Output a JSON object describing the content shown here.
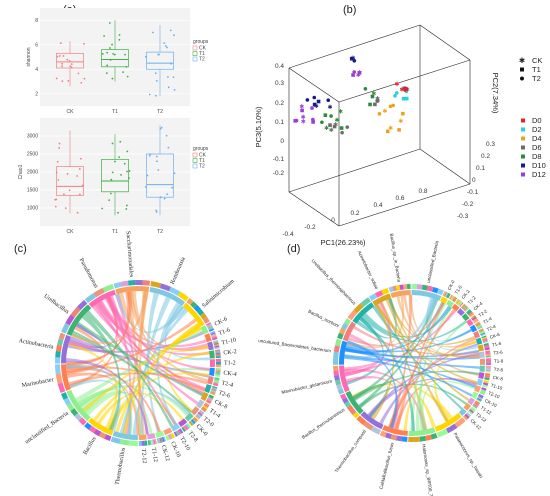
{
  "chart_data": [
    {
      "panel_label": "(a)",
      "type": "box",
      "subplots": [
        {
          "ylabel": "shannon",
          "categories": [
            "CK",
            "T1",
            "T2"
          ],
          "colors": [
            "#f08080",
            "#3cb043",
            "#6ab0f0"
          ],
          "ylim": [
            1,
            9
          ],
          "yticks": [
            "2",
            "4",
            "6",
            "8"
          ],
          "legend_title": "groups",
          "legend_items": [
            "CK",
            "T1",
            "T2"
          ],
          "boxes": [
            {
              "group": "CK",
              "q1": 4.1,
              "median": 4.6,
              "q3": 5.3,
              "min": 2.6,
              "max": 6.3
            },
            {
              "group": "T1",
              "q1": 4.2,
              "median": 4.8,
              "q3": 5.6,
              "min": 3.0,
              "max": 8.0
            },
            {
              "group": "T2",
              "q1": 4.0,
              "median": 4.5,
              "q3": 5.4,
              "min": 1.8,
              "max": 7.6
            }
          ]
        },
        {
          "ylabel": "Chao1",
          "categories": [
            "CK",
            "T1",
            "T2"
          ],
          "colors": [
            "#f08080",
            "#3cb043",
            "#6ab0f0"
          ],
          "ylim": [
            500,
            3500
          ],
          "yticks": [
            "1000",
            "1500",
            "2000",
            "2500",
            "3000"
          ],
          "legend_title": "groups",
          "legend_items": [
            "CK",
            "T1",
            "T2"
          ],
          "boxes": [
            {
              "group": "CK",
              "q1": 1350,
              "median": 1600,
              "q3": 2150,
              "min": 850,
              "max": 3150
            },
            {
              "group": "T1",
              "q1": 1450,
              "median": 1750,
              "q3": 2350,
              "min": 800,
              "max": 3050
            },
            {
              "group": "T2",
              "q1": 1300,
              "median": 1650,
              "q3": 2500,
              "min": 800,
              "max": 3300
            }
          ]
        }
      ]
    },
    {
      "panel_label": "(b)",
      "type": "scatter",
      "xlabel": "PC1(26.23%)",
      "ylabel": "PC3(5.10%)",
      "zlabel": "PC2(7.34%)",
      "xticks": [
        "-0.4",
        "-0.2",
        "0",
        "0.2",
        "0.4",
        "0.6",
        "0.8"
      ],
      "zticks": [
        "-0.3",
        "-0.2",
        "-0.1",
        "0",
        "0.1",
        "0.2",
        "0.3"
      ],
      "yticks": [
        "-0.2",
        "-0.1",
        "0",
        "0.1",
        "0.2",
        "0.3",
        "0.4"
      ],
      "legend_shapes": [
        "CK",
        "T1",
        "T2"
      ],
      "legend_colors": [
        {
          "name": "D0",
          "color": "#e8202a"
        },
        {
          "name": "D2",
          "color": "#22d3e0"
        },
        {
          "name": "D4",
          "color": "#f0a020"
        },
        {
          "name": "D6",
          "color": "#6b6b6b"
        },
        {
          "name": "D8",
          "color": "#2e8b3a"
        },
        {
          "name": "D10",
          "color": "#1a1a8c"
        },
        {
          "name": "D12",
          "color": "#9b3ed8"
        }
      ]
    },
    {
      "panel_label": "(c)",
      "type": "chord",
      "labels": [
        "Saccharimonadales",
        "Romboutsia",
        "Salinimicrobium",
        "CK-6",
        "T1-6",
        "T1-10",
        "CK-2",
        "T1-2",
        "CK-4",
        "T2-4",
        "T2-6",
        "CK-8",
        "T1-4",
        "T2-0",
        "CK-0",
        "T2-8",
        "T2-10",
        "CK-10",
        "CK-12",
        "T1-12",
        "T2-12",
        "Thermobacillus",
        "Bacillus",
        "unclassified_Bacteria",
        "Marinobacter",
        "Actinobacteria",
        "Urelbacillus",
        "Pseudomonas"
      ]
    },
    {
      "panel_label": "(d)",
      "type": "chord",
      "labels": [
        "Bacillus_sp._in_Bacteria",
        "unclassified_Bacteria",
        "CK-0",
        "T1-0",
        "CK-2",
        "T1-2",
        "CK-4",
        "T2-2",
        "T1-4",
        "T2-4",
        "CK-6",
        "T1-6",
        "T2-6",
        "T1-8",
        "T2-8",
        "CK-8",
        "T1-10",
        "T2-10",
        "CK-10",
        "T1-12",
        "T2-12",
        "CK-12",
        "Palaeococcus_sp._hasaki",
        "Halomonas_sp._BRT00_7",
        "Caldalkalibacillus_fusus",
        "Thermobacillus_composti",
        "Bacillus_thermolaminisus",
        "Marinobacter_glutamicum",
        "uncultured_Bacteroidetes_bacterium",
        "Bacillus_isorboni",
        "Ureibacillus_thermosphaericus",
        "Acinetobacter_soliae"
      ]
    }
  ]
}
